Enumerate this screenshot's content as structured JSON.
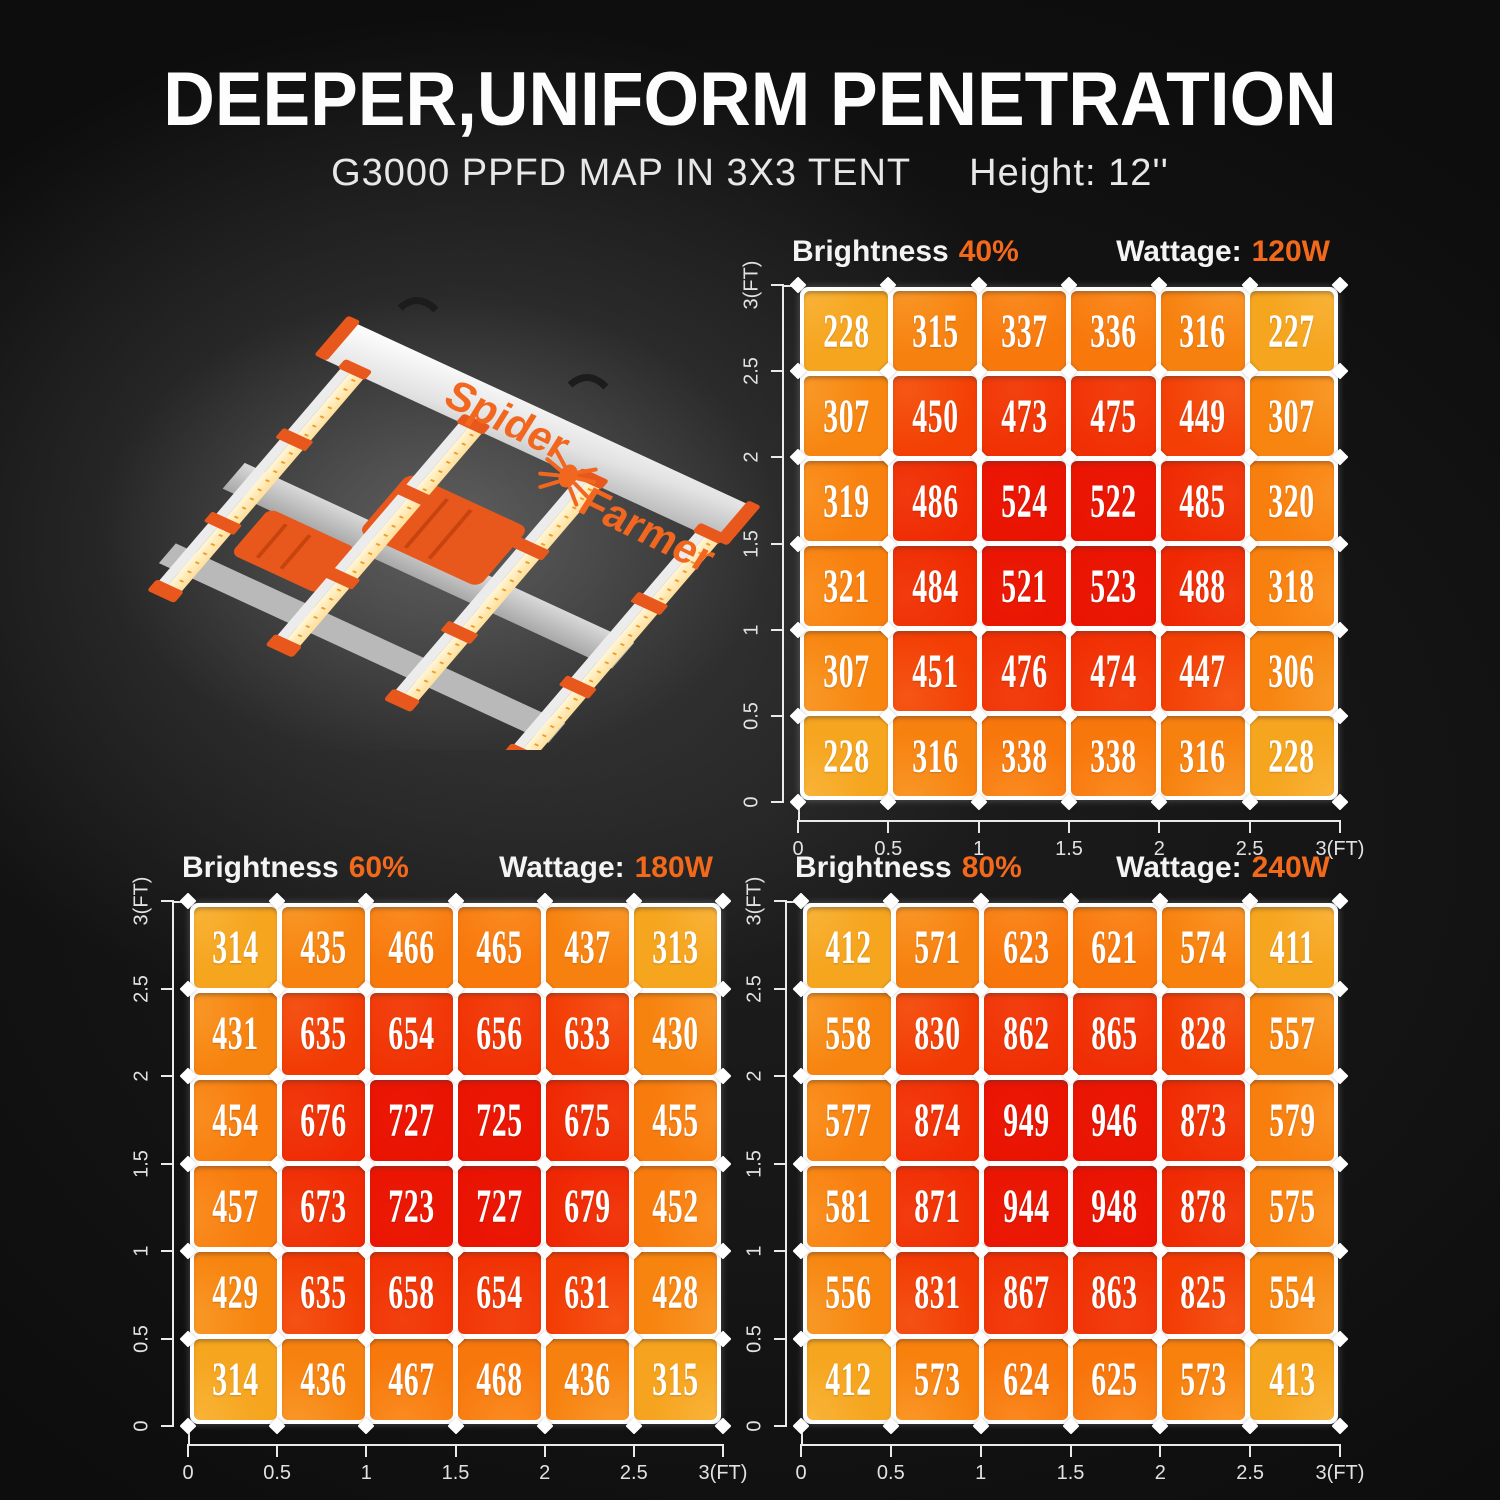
{
  "title": "DEEPER,UNIFORM PENETRATION",
  "subtitle": {
    "map_label": "G3000 PPFD MAP IN 3X3 TENT",
    "height_label": "Height: 12''"
  },
  "brand": {
    "word1": "Spider",
    "word2": "Farmer"
  },
  "colors": {
    "accent": "#F2691C",
    "heat_low": "#F6A51F",
    "heat_high": "#EA1202",
    "grid_line": "#FFFFFF",
    "axis": "#EAEAEA"
  },
  "chart_data": [
    {
      "type": "heatmap",
      "header": {
        "brightness_label": "Brightness",
        "brightness_value": "40%",
        "wattage_label": "Wattage:",
        "wattage_value": "120W"
      },
      "x_ticks": [
        "0",
        "0.5",
        "1",
        "1.5",
        "2",
        "2.5",
        "3(FT)"
      ],
      "y_ticks": [
        "3(FT)",
        "2.5",
        "2",
        "1.5",
        "1",
        "0.5",
        "0"
      ],
      "values": [
        [
          228,
          315,
          337,
          336,
          316,
          227
        ],
        [
          307,
          450,
          473,
          475,
          449,
          307
        ],
        [
          319,
          486,
          524,
          522,
          485,
          320
        ],
        [
          321,
          484,
          521,
          523,
          488,
          318
        ],
        [
          307,
          451,
          476,
          474,
          447,
          306
        ],
        [
          228,
          316,
          338,
          338,
          316,
          228
        ]
      ]
    },
    {
      "type": "heatmap",
      "header": {
        "brightness_label": "Brightness",
        "brightness_value": "60%",
        "wattage_label": "Wattage:",
        "wattage_value": "180W"
      },
      "x_ticks": [
        "0",
        "0.5",
        "1",
        "1.5",
        "2",
        "2.5",
        "3(FT)"
      ],
      "y_ticks": [
        "3(FT)",
        "2.5",
        "2",
        "1.5",
        "1",
        "0.5",
        "0"
      ],
      "values": [
        [
          314,
          435,
          466,
          465,
          437,
          313
        ],
        [
          431,
          635,
          654,
          656,
          633,
          430
        ],
        [
          454,
          676,
          727,
          725,
          675,
          455
        ],
        [
          457,
          673,
          723,
          727,
          679,
          452
        ],
        [
          429,
          635,
          658,
          654,
          631,
          428
        ],
        [
          314,
          436,
          467,
          468,
          436,
          315
        ]
      ]
    },
    {
      "type": "heatmap",
      "header": {
        "brightness_label": "Brightness",
        "brightness_value": "80%",
        "wattage_label": "Wattage:",
        "wattage_value": "240W"
      },
      "x_ticks": [
        "0",
        "0.5",
        "1",
        "1.5",
        "2",
        "2.5",
        "3(FT)"
      ],
      "y_ticks": [
        "3(FT)",
        "2.5",
        "2",
        "1.5",
        "1",
        "0.5",
        "0"
      ],
      "values": [
        [
          412,
          571,
          623,
          621,
          574,
          411
        ],
        [
          558,
          830,
          862,
          865,
          828,
          557
        ],
        [
          577,
          874,
          949,
          946,
          873,
          579
        ],
        [
          581,
          871,
          944,
          948,
          878,
          575
        ],
        [
          556,
          831,
          867,
          863,
          825,
          554
        ],
        [
          412,
          573,
          624,
          625,
          573,
          413
        ]
      ]
    }
  ]
}
